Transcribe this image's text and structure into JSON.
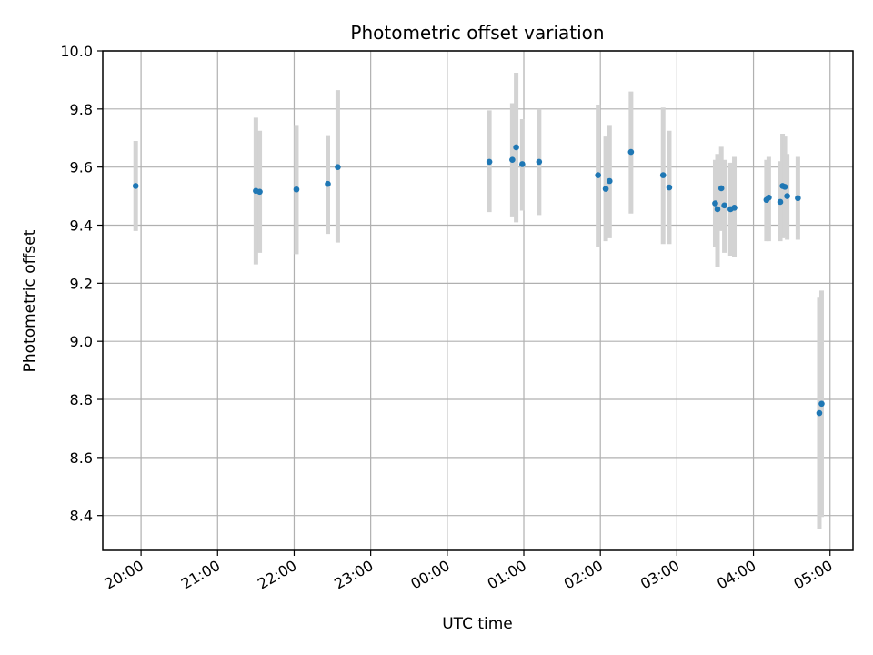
{
  "chart_data": {
    "type": "scatter",
    "title": "Photometric offset variation",
    "xlabel": "UTC time",
    "ylabel": "Photometric offset",
    "xlim_hours": [
      19.5,
      29.3
    ],
    "ylim": [
      8.28,
      10.0
    ],
    "x_ticks": [
      {
        "value": 20,
        "label": "20:00"
      },
      {
        "value": 21,
        "label": "21:00"
      },
      {
        "value": 22,
        "label": "22:00"
      },
      {
        "value": 23,
        "label": "23:00"
      },
      {
        "value": 24,
        "label": "00:00"
      },
      {
        "value": 25,
        "label": "01:00"
      },
      {
        "value": 26,
        "label": "02:00"
      },
      {
        "value": 27,
        "label": "03:00"
      },
      {
        "value": 28,
        "label": "04:00"
      },
      {
        "value": 29,
        "label": "05:00"
      }
    ],
    "y_ticks": [
      {
        "value": 8.4,
        "label": "8.4"
      },
      {
        "value": 8.6,
        "label": "8.6"
      },
      {
        "value": 8.8,
        "label": "8.8"
      },
      {
        "value": 9.0,
        "label": "9.0"
      },
      {
        "value": 9.2,
        "label": "9.2"
      },
      {
        "value": 9.4,
        "label": "9.4"
      },
      {
        "value": 9.6,
        "label": "9.6"
      },
      {
        "value": 9.8,
        "label": "9.8"
      },
      {
        "value": 10.0,
        "label": "10.0"
      }
    ],
    "grid": true,
    "series": [
      {
        "name": "Photometric offset",
        "marker_color": "#1f77b4",
        "errorbar_color": "#d3d3d3",
        "points": [
          {
            "x": 19.93,
            "y": 9.535,
            "lo": 9.38,
            "hi": 9.69
          },
          {
            "x": 21.5,
            "y": 9.518,
            "lo": 9.265,
            "hi": 9.77
          },
          {
            "x": 21.55,
            "y": 9.515,
            "lo": 9.305,
            "hi": 9.725
          },
          {
            "x": 22.03,
            "y": 9.523,
            "lo": 9.3,
            "hi": 9.745
          },
          {
            "x": 22.44,
            "y": 9.542,
            "lo": 9.37,
            "hi": 9.71
          },
          {
            "x": 22.57,
            "y": 9.6,
            "lo": 9.34,
            "hi": 9.865
          },
          {
            "x": 24.55,
            "y": 9.618,
            "lo": 9.445,
            "hi": 9.795
          },
          {
            "x": 24.85,
            "y": 9.625,
            "lo": 9.43,
            "hi": 9.82
          },
          {
            "x": 24.9,
            "y": 9.668,
            "lo": 9.41,
            "hi": 9.925
          },
          {
            "x": 24.98,
            "y": 9.61,
            "lo": 9.45,
            "hi": 9.765
          },
          {
            "x": 25.2,
            "y": 9.618,
            "lo": 9.435,
            "hi": 9.8
          },
          {
            "x": 25.97,
            "y": 9.572,
            "lo": 9.325,
            "hi": 9.815
          },
          {
            "x": 26.07,
            "y": 9.525,
            "lo": 9.345,
            "hi": 9.705
          },
          {
            "x": 26.12,
            "y": 9.552,
            "lo": 9.355,
            "hi": 9.745
          },
          {
            "x": 26.4,
            "y": 9.652,
            "lo": 9.44,
            "hi": 9.86
          },
          {
            "x": 26.82,
            "y": 9.572,
            "lo": 9.335,
            "hi": 9.805
          },
          {
            "x": 26.9,
            "y": 9.53,
            "lo": 9.335,
            "hi": 9.725
          },
          {
            "x": 27.5,
            "y": 9.475,
            "lo": 9.325,
            "hi": 9.625
          },
          {
            "x": 27.53,
            "y": 9.455,
            "lo": 9.255,
            "hi": 9.645
          },
          {
            "x": 27.58,
            "y": 9.527,
            "lo": 9.38,
            "hi": 9.67
          },
          {
            "x": 27.62,
            "y": 9.468,
            "lo": 9.305,
            "hi": 9.625
          },
          {
            "x": 27.7,
            "y": 9.455,
            "lo": 9.295,
            "hi": 9.615
          },
          {
            "x": 27.75,
            "y": 9.46,
            "lo": 9.29,
            "hi": 9.635
          },
          {
            "x": 28.17,
            "y": 9.487,
            "lo": 9.345,
            "hi": 9.625
          },
          {
            "x": 28.2,
            "y": 9.495,
            "lo": 9.345,
            "hi": 9.635
          },
          {
            "x": 28.35,
            "y": 9.48,
            "lo": 9.345,
            "hi": 9.62
          },
          {
            "x": 28.38,
            "y": 9.535,
            "lo": 9.355,
            "hi": 9.715
          },
          {
            "x": 28.41,
            "y": 9.532,
            "lo": 9.36,
            "hi": 9.705
          },
          {
            "x": 28.44,
            "y": 9.5,
            "lo": 9.35,
            "hi": 9.645
          },
          {
            "x": 28.58,
            "y": 9.493,
            "lo": 9.35,
            "hi": 9.635
          },
          {
            "x": 28.86,
            "y": 8.753,
            "lo": 8.355,
            "hi": 9.15
          },
          {
            "x": 28.89,
            "y": 8.785,
            "lo": 8.395,
            "hi": 9.175
          }
        ]
      }
    ]
  }
}
